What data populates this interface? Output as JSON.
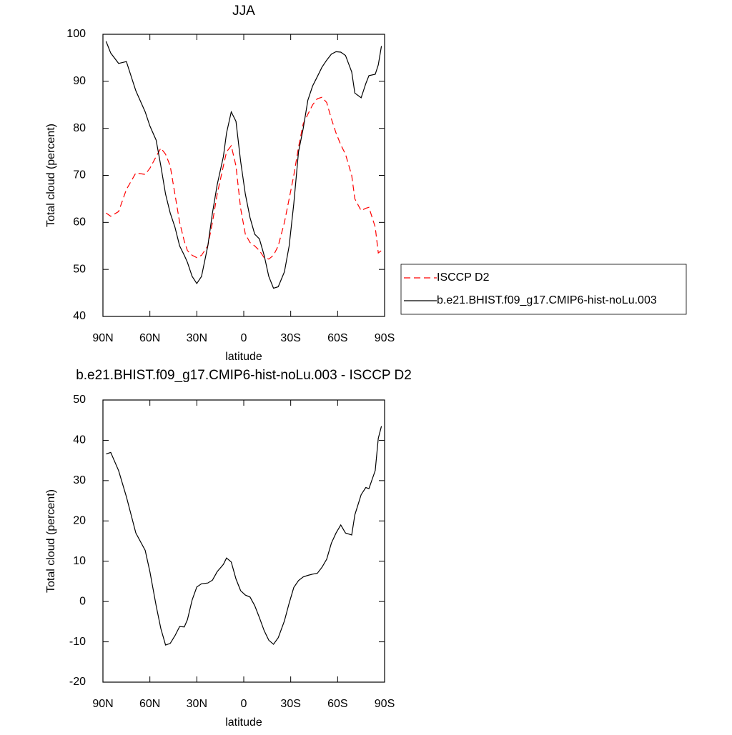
{
  "chart_data": [
    {
      "type": "line",
      "title": "JJA",
      "xlabel": "latitude",
      "ylabel": "Total cloud (percent)",
      "x": [
        88,
        85,
        80,
        75,
        69,
        63,
        60,
        56,
        53,
        50,
        47,
        44,
        41,
        38,
        36,
        33,
        30,
        27,
        23,
        20,
        17,
        13,
        11,
        8,
        5,
        2,
        -1,
        -4,
        -7,
        -10,
        -13,
        -16,
        -19,
        -22,
        -26,
        -29,
        -32,
        -35,
        -38,
        -41,
        -44,
        -47,
        -50,
        -53,
        -56,
        -59,
        -62,
        -65,
        -69,
        -71,
        -75,
        -78,
        -80,
        -84,
        -86,
        -88
      ],
      "xlim": [
        90,
        -90
      ],
      "xticks": [
        {
          "value": 90,
          "label": "90N"
        },
        {
          "value": 60,
          "label": "60N"
        },
        {
          "value": 30,
          "label": "30N"
        },
        0,
        {
          "value": -30,
          "label": "30S"
        },
        {
          "value": -60,
          "label": "60S"
        },
        {
          "value": -90,
          "label": "90S"
        }
      ],
      "ylim": [
        40,
        100
      ],
      "yticks": [
        40,
        50,
        60,
        70,
        80,
        90,
        100
      ],
      "legend": "right",
      "series": [
        {
          "name": "ISCCP D2",
          "color": "#ff0000",
          "dash": true,
          "values": [
            62,
            61.3,
            62.3,
            67,
            70.5,
            70.2,
            71.5,
            74,
            75.8,
            74.5,
            72,
            66,
            60,
            56,
            54,
            53,
            52.5,
            53,
            55,
            60,
            66,
            72,
            75,
            76.3,
            72,
            63,
            57.5,
            55.7,
            55,
            54,
            52.5,
            52.2,
            53,
            55,
            60,
            65,
            70,
            76,
            81,
            83,
            85,
            86.3,
            86.6,
            85.5,
            82,
            79,
            76.5,
            74.5,
            70,
            65,
            62.5,
            63,
            63.2,
            59,
            53.5,
            54
          ]
        },
        {
          "name": "b.e21.BHIST.f09_g17.CMIP6-hist-noLu.003",
          "color": "#000000",
          "dash": false,
          "values": [
            98.5,
            96,
            93.8,
            94.2,
            88,
            83.5,
            80.5,
            77.5,
            72,
            66,
            62,
            59,
            55,
            53,
            51.5,
            48.5,
            47,
            48.5,
            55,
            62,
            68,
            74,
            79,
            83.5,
            81.5,
            73,
            66,
            61,
            57.5,
            56.5,
            53,
            48.5,
            46,
            46.3,
            49.5,
            55,
            64,
            75,
            80,
            86,
            89,
            91,
            93,
            94.5,
            95.8,
            96.3,
            96.2,
            95.5,
            92,
            87.5,
            86.5,
            89.5,
            91.2,
            91.5,
            93.5,
            97.5
          ]
        }
      ]
    },
    {
      "type": "line",
      "title": "b.e21.BHIST.f09_g17.CMIP6-hist-noLu.003 - ISCCP D2",
      "xlabel": "latitude",
      "ylabel": "Total cloud (percent)",
      "x": [
        88,
        85,
        80,
        75,
        69,
        63,
        60,
        56,
        53,
        50,
        47,
        44,
        41,
        38,
        36,
        33,
        30,
        27,
        23,
        20,
        17,
        13,
        11,
        8,
        5,
        2,
        -1,
        -4,
        -7,
        -10,
        -13,
        -16,
        -19,
        -22,
        -26,
        -29,
        -32,
        -35,
        -38,
        -41,
        -44,
        -47,
        -50,
        -53,
        -56,
        -59,
        -62,
        -65,
        -69,
        -71,
        -75,
        -78,
        -80,
        -84,
        -86,
        -88
      ],
      "xlim": [
        90,
        -90
      ],
      "xticks": [
        {
          "value": 90,
          "label": "90N"
        },
        {
          "value": 60,
          "label": "60N"
        },
        {
          "value": 30,
          "label": "30N"
        },
        0,
        {
          "value": -30,
          "label": "30S"
        },
        {
          "value": -60,
          "label": "60S"
        },
        {
          "value": -90,
          "label": "90S"
        }
      ],
      "ylim": [
        -20,
        50
      ],
      "yticks": [
        -20,
        -10,
        0,
        10,
        20,
        30,
        40,
        50
      ],
      "series": [
        {
          "color": "#000000",
          "dash": false,
          "values": [
            36.6,
            37,
            32.5,
            26,
            17,
            12.7,
            7.4,
            -1,
            -6.7,
            -10.8,
            -10.4,
            -8.5,
            -6.2,
            -6.3,
            -4.5,
            0.4,
            3.6,
            4.4,
            4.6,
            5.3,
            7.4,
            9.2,
            10.8,
            9.8,
            5.6,
            2.7,
            1.6,
            1.1,
            -1,
            -4,
            -7.2,
            -9.6,
            -10.6,
            -9,
            -4.8,
            -0.4,
            3.5,
            5.2,
            6.1,
            6.5,
            6.8,
            7,
            8.5,
            10.5,
            14.5,
            17,
            19,
            17,
            16.5,
            21.5,
            26.5,
            28.3,
            28,
            32.5,
            40.5,
            43.5
          ]
        }
      ]
    }
  ]
}
